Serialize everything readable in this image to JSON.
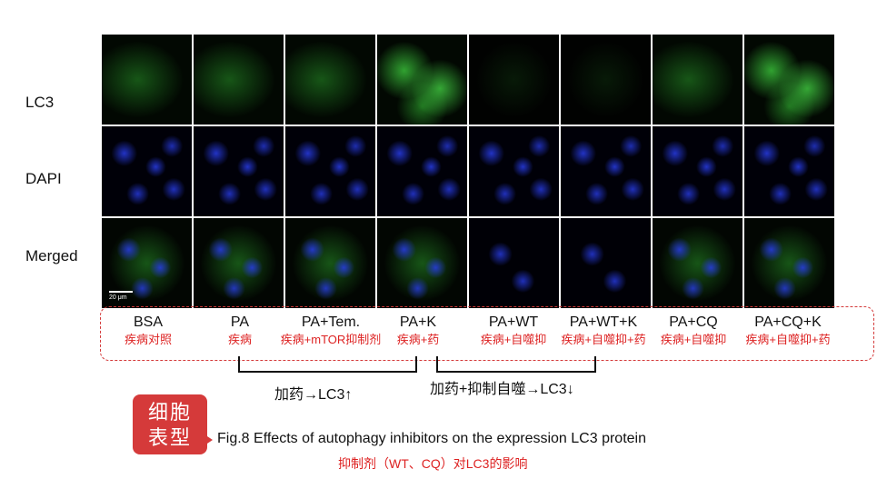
{
  "row_labels": [
    "LC3",
    "DAPI",
    "Merged"
  ],
  "scale_bar": "20 μm",
  "groups": [
    {
      "name": "BSA",
      "desc": "疾病对照"
    },
    {
      "name": "PA",
      "desc": "疾病"
    },
    {
      "name": "PA+Tem.",
      "desc": "疾病+mTOR抑制剂"
    },
    {
      "name": "PA+K",
      "desc": "疾病+药"
    },
    {
      "name": "PA+WT",
      "desc": "疾病+自噬抑"
    },
    {
      "name": "PA+WT+K",
      "desc": "疾病+自噬抑+药"
    },
    {
      "name": "PA+CQ",
      "desc": "疾病+自噬抑"
    },
    {
      "name": "PA+CQ+K",
      "desc": "疾病+自噬抑+药"
    }
  ],
  "brackets": [
    {
      "label": "加药→LC3↑"
    },
    {
      "label": "加药+抑制自噬→LC3↓"
    }
  ],
  "badge": {
    "line1": "细胞",
    "line2": "表型"
  },
  "caption": "Fig.8 Effects of autophagy inhibitors on the expression LC3 protein",
  "subcaption": "抑制剂（WT、CQ）对LC3的影响",
  "colors": {
    "accent_red": "#d53a3a",
    "lc3_green": "#2a9a2a",
    "dapi_blue": "#2a3ce6"
  }
}
